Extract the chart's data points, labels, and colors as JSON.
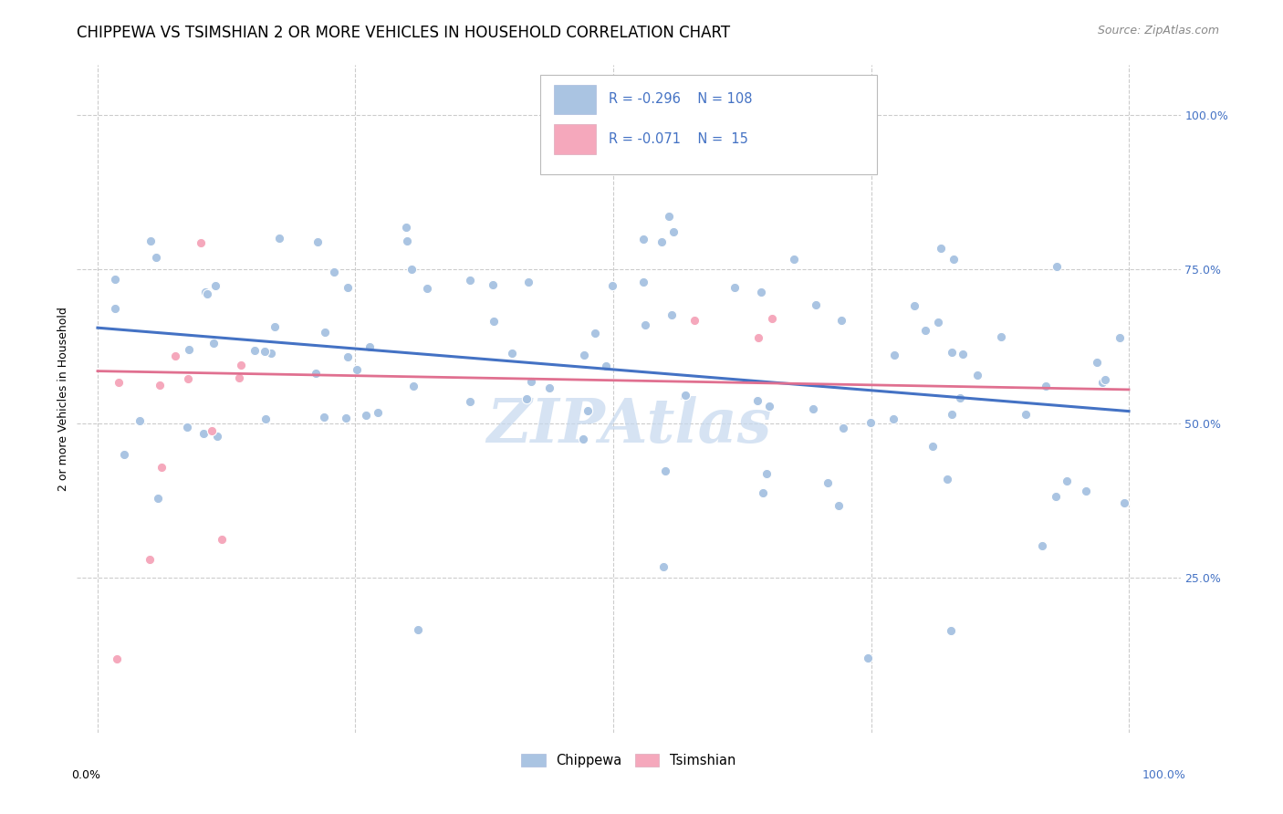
{
  "title": "CHIPPEWA VS TSIMSHIAN 2 OR MORE VEHICLES IN HOUSEHOLD CORRELATION CHART",
  "source": "Source: ZipAtlas.com",
  "ylabel": "2 or more Vehicles in Household",
  "ylabel_ticks": [
    "100.0%",
    "75.0%",
    "50.0%",
    "25.0%"
  ],
  "ylabel_tick_vals": [
    1.0,
    0.75,
    0.5,
    0.25
  ],
  "watermark": "ZIPAtlas",
  "chippewa_color": "#aac4e2",
  "tsimshian_color": "#f5a8bc",
  "chippewa_line_color": "#4472c4",
  "tsimshian_line_color": "#e07090",
  "legend_text_color": "#4472c4",
  "chippewa_trend_x0": 0.0,
  "chippewa_trend_y0": 0.655,
  "chippewa_trend_x1": 1.0,
  "chippewa_trend_y1": 0.52,
  "tsimshian_trend_x0": 0.0,
  "tsimshian_trend_y0": 0.585,
  "tsimshian_trend_x1": 1.0,
  "tsimshian_trend_y1": 0.555,
  "xlim": [
    -0.02,
    1.05
  ],
  "ylim": [
    0.0,
    1.08
  ],
  "grid_color": "#cccccc",
  "background_color": "#ffffff",
  "title_fontsize": 12,
  "axis_label_fontsize": 9,
  "tick_fontsize": 9,
  "source_fontsize": 9,
  "watermark_fontsize": 48,
  "watermark_color": "#c5d8ee",
  "marker_size": 55
}
